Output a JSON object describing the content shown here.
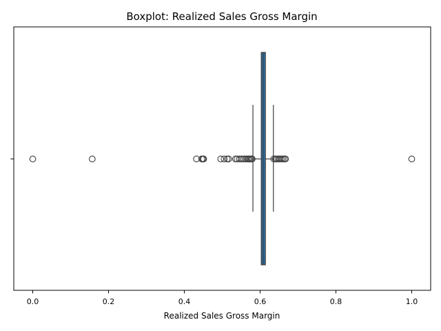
{
  "chart_data": {
    "type": "boxplot",
    "title": "Boxplot:  Realized Sales Gross Margin",
    "xlabel": "Realized Sales Gross Margin",
    "xlim": [
      -0.05,
      1.05
    ],
    "xticks": [
      0.0,
      0.2,
      0.4,
      0.6,
      0.8,
      1.0
    ],
    "xtick_labels": [
      "0.0",
      "0.2",
      "0.4",
      "0.6",
      "0.8",
      "1.0"
    ],
    "box": {
      "q1": 0.603,
      "median": 0.608,
      "q3": 0.614,
      "whisker_low": 0.581,
      "whisker_high": 0.635
    },
    "outliers": [
      0.0,
      0.157,
      0.432,
      0.446,
      0.449,
      0.451,
      0.496,
      0.505,
      0.513,
      0.517,
      0.535,
      0.539,
      0.545,
      0.55,
      0.555,
      0.56,
      0.564,
      0.568,
      0.571,
      0.574,
      0.577,
      0.579,
      0.636,
      0.64,
      0.644,
      0.648,
      0.652,
      0.656,
      0.66,
      0.664,
      0.667,
      1.0
    ],
    "colors": {
      "box": "#2e6e9e",
      "edge": "#3d3d3d"
    }
  }
}
